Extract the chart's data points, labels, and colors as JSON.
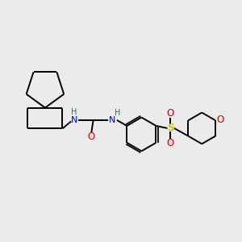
{
  "bg_color": "#ebebeb",
  "line_color": "#000000",
  "N_color": "#0000cc",
  "O_color": "#cc0000",
  "S_color": "#cccc00",
  "H_color": "#008080",
  "bond_lw": 1.4,
  "figsize": [
    3.0,
    3.0
  ],
  "dpi": 100,
  "xlim": [
    0,
    10
  ],
  "ylim": [
    0,
    10
  ]
}
